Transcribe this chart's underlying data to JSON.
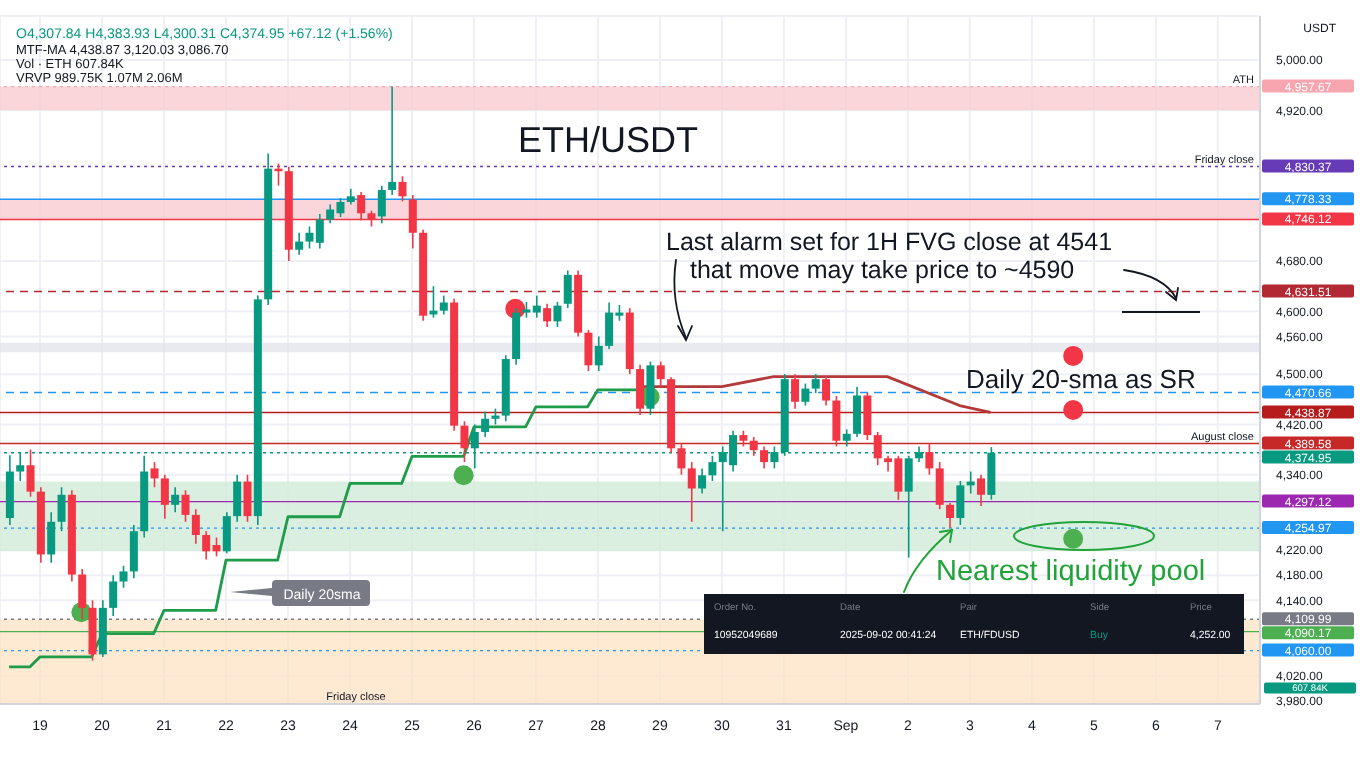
{
  "chart_data": {
    "type": "candlestick",
    "title": "ETH/USDT",
    "ylabel": "USDT",
    "x": [
      "2025-08-18T12:00",
      "2025-08-18T16:00",
      "2025-08-18T20:00",
      "2025-08-19T00:00",
      "2025-08-19T04:00",
      "2025-08-19T08:00",
      "2025-08-19T12:00",
      "2025-08-19T16:00",
      "2025-08-19T20:00",
      "2025-08-20T00:00",
      "2025-08-20T04:00",
      "2025-08-20T08:00",
      "2025-08-20T12:00",
      "2025-08-20T16:00",
      "2025-08-20T20:00",
      "2025-08-21T00:00",
      "2025-08-21T04:00",
      "2025-08-21T08:00",
      "2025-08-21T12:00",
      "2025-08-21T16:00",
      "2025-08-21T20:00",
      "2025-08-22T00:00",
      "2025-08-22T04:00",
      "2025-08-22T08:00",
      "2025-08-22T12:00",
      "2025-08-22T16:00",
      "2025-08-22T20:00",
      "2025-08-23T00:00",
      "2025-08-23T04:00",
      "2025-08-23T08:00",
      "2025-08-23T12:00",
      "2025-08-23T16:00",
      "2025-08-23T20:00",
      "2025-08-24T00:00",
      "2025-08-24T04:00",
      "2025-08-24T08:00",
      "2025-08-24T12:00",
      "2025-08-24T16:00",
      "2025-08-24T20:00",
      "2025-08-25T00:00",
      "2025-08-25T04:00",
      "2025-08-25T08:00",
      "2025-08-25T12:00",
      "2025-08-25T16:00",
      "2025-08-25T20:00",
      "2025-08-26T00:00",
      "2025-08-26T04:00",
      "2025-08-26T08:00",
      "2025-08-26T12:00",
      "2025-08-26T16:00",
      "2025-08-26T20:00",
      "2025-08-27T00:00",
      "2025-08-27T04:00",
      "2025-08-27T08:00",
      "2025-08-27T12:00",
      "2025-08-27T16:00",
      "2025-08-27T20:00",
      "2025-08-28T00:00",
      "2025-08-28T04:00",
      "2025-08-28T08:00",
      "2025-08-28T12:00",
      "2025-08-28T16:00",
      "2025-08-28T20:00",
      "2025-08-29T00:00",
      "2025-08-29T04:00",
      "2025-08-29T08:00",
      "2025-08-29T12:00",
      "2025-08-29T16:00",
      "2025-08-29T20:00",
      "2025-08-30T00:00",
      "2025-08-30T04:00",
      "2025-08-30T08:00",
      "2025-08-30T12:00",
      "2025-08-30T16:00",
      "2025-08-30T20:00",
      "2025-08-31T00:00",
      "2025-08-31T04:00",
      "2025-08-31T08:00",
      "2025-08-31T12:00",
      "2025-08-31T16:00",
      "2025-08-31T20:00",
      "2025-09-01T00:00",
      "2025-09-01T04:00",
      "2025-09-01T08:00",
      "2025-09-01T12:00",
      "2025-09-01T16:00",
      "2025-09-01T20:00",
      "2025-09-02T00:00",
      "2025-09-02T04:00",
      "2025-09-02T08:00",
      "2025-09-02T12:00",
      "2025-09-02T16:00",
      "2025-09-02T20:00",
      "2025-09-03T00:00",
      "2025-09-03T04:00",
      "2025-09-03T08:00"
    ],
    "ohlc": [
      [
        4271,
        4371,
        4260,
        4345
      ],
      [
        4345,
        4375,
        4330,
        4355
      ],
      [
        4355,
        4380,
        4305,
        4313
      ],
      [
        4313,
        4320,
        4200,
        4213
      ],
      [
        4213,
        4280,
        4200,
        4265
      ],
      [
        4265,
        4320,
        4250,
        4308
      ],
      [
        4308,
        4315,
        4170,
        4181
      ],
      [
        4181,
        4190,
        4110,
        4128
      ],
      [
        4128,
        4140,
        4044,
        4054
      ],
      [
        4054,
        4140,
        4050,
        4128
      ],
      [
        4128,
        4180,
        4115,
        4170
      ],
      [
        4170,
        4195,
        4160,
        4186
      ],
      [
        4186,
        4260,
        4175,
        4250
      ],
      [
        4250,
        4370,
        4240,
        4345
      ],
      [
        4350,
        4360,
        4320,
        4334
      ],
      [
        4334,
        4340,
        4270,
        4292
      ],
      [
        4292,
        4320,
        4280,
        4308
      ],
      [
        4308,
        4315,
        4265,
        4276
      ],
      [
        4276,
        4285,
        4230,
        4244
      ],
      [
        4244,
        4250,
        4205,
        4218
      ],
      [
        4228,
        4240,
        4210,
        4218
      ],
      [
        4218,
        4280,
        4215,
        4274
      ],
      [
        4274,
        4340,
        4265,
        4329
      ],
      [
        4329,
        4340,
        4265,
        4274
      ],
      [
        4274,
        4625,
        4260,
        4619
      ],
      [
        4619,
        4851,
        4610,
        4827
      ],
      [
        4827,
        4835,
        4800,
        4823
      ],
      [
        4823,
        4830,
        4680,
        4698
      ],
      [
        4698,
        4725,
        4690,
        4711
      ],
      [
        4711,
        4735,
        4700,
        4725
      ],
      [
        4709,
        4755,
        4700,
        4746
      ],
      [
        4746,
        4770,
        4740,
        4762
      ],
      [
        4756,
        4780,
        4750,
        4774
      ],
      [
        4774,
        4795,
        4770,
        4783
      ],
      [
        4785,
        4790,
        4745,
        4756
      ],
      [
        4756,
        4760,
        4735,
        4746
      ],
      [
        4751,
        4800,
        4740,
        4793
      ],
      [
        4793,
        4957.67,
        4785,
        4806
      ],
      [
        4806,
        4815,
        4775,
        4783
      ],
      [
        4778,
        4785,
        4700,
        4725
      ],
      [
        4725,
        4730,
        4585,
        4593
      ],
      [
        4595,
        4640,
        4590,
        4601
      ],
      [
        4601,
        4625,
        4595,
        4614
      ],
      [
        4614,
        4620,
        4410,
        4418
      ],
      [
        4418,
        4425,
        4360,
        4382
      ],
      [
        4382,
        4420,
        4350,
        4408
      ],
      [
        4408,
        4440,
        4400,
        4429
      ],
      [
        4429,
        4445,
        4420,
        4434
      ],
      [
        4434,
        4530,
        4425,
        4524
      ],
      [
        4524,
        4605,
        4515,
        4598
      ],
      [
        4598,
        4615,
        4590,
        4603
      ],
      [
        4598,
        4625,
        4590,
        4609
      ],
      [
        4605,
        4612,
        4575,
        4584
      ],
      [
        4584,
        4615,
        4575,
        4609
      ],
      [
        4612,
        4665,
        4605,
        4658
      ],
      [
        4658,
        4665,
        4560,
        4566
      ],
      [
        4566,
        4570,
        4505,
        4514
      ],
      [
        4514,
        4560,
        4505,
        4545
      ],
      [
        4545,
        4614,
        4540,
        4598
      ],
      [
        4593,
        4610,
        4585,
        4598
      ],
      [
        4598,
        4605,
        4500,
        4508
      ],
      [
        4508,
        4515,
        4435,
        4445
      ],
      [
        4445,
        4520,
        4435,
        4514
      ],
      [
        4514,
        4520,
        4480,
        4492
      ],
      [
        4492,
        4495,
        4375,
        4382
      ],
      [
        4382,
        4390,
        4340,
        4350
      ],
      [
        4350,
        4360,
        4265,
        4318
      ],
      [
        4318,
        4350,
        4310,
        4339
      ],
      [
        4339,
        4370,
        4330,
        4360
      ],
      [
        4360,
        4385,
        4250,
        4376
      ],
      [
        4355,
        4410,
        4345,
        4403
      ],
      [
        4403,
        4410,
        4385,
        4394
      ],
      [
        4394,
        4400,
        4370,
        4379
      ],
      [
        4379,
        4385,
        4350,
        4360
      ],
      [
        4360,
        4385,
        4350,
        4376
      ],
      [
        4376,
        4500,
        4370,
        4492
      ],
      [
        4492,
        4500,
        4445,
        4456
      ],
      [
        4456,
        4485,
        4450,
        4477
      ],
      [
        4477,
        4500,
        4470,
        4492
      ],
      [
        4492,
        4498,
        4450,
        4458
      ],
      [
        4458,
        4465,
        4385,
        4394
      ],
      [
        4394,
        4412,
        4385,
        4405
      ],
      [
        4405,
        4480,
        4400,
        4466
      ],
      [
        4466,
        4470,
        4395,
        4403
      ],
      [
        4403,
        4408,
        4355,
        4366
      ],
      [
        4366,
        4370,
        4345,
        4360
      ],
      [
        4366,
        4370,
        4300,
        4313
      ],
      [
        4313,
        4370,
        4208,
        4366
      ],
      [
        4366,
        4385,
        4360,
        4376
      ],
      [
        4376,
        4390,
        4340,
        4350
      ],
      [
        4350,
        4360,
        4285,
        4292
      ],
      [
        4292,
        4295,
        4255,
        4271
      ],
      [
        4271,
        4330,
        4260,
        4323
      ],
      [
        4323,
        4345,
        4310,
        4329
      ],
      [
        4334,
        4340,
        4290,
        4308
      ],
      [
        4307.84,
        4383.93,
        4300.31,
        4374.95
      ]
    ],
    "colors": [
      "#089981",
      "#089981",
      "#f23645",
      "#f23645",
      "#089981",
      "#089981",
      "#f23645",
      "#f23645",
      "#f23645",
      "#089981",
      "#089981",
      "#089981",
      "#089981",
      "#089981",
      "#f23645",
      "#f23645",
      "#089981",
      "#f23645",
      "#f23645",
      "#f23645",
      "#f23645",
      "#089981",
      "#089981",
      "#f23645",
      "#089981",
      "#089981",
      "#f23645",
      "#f23645",
      "#089981",
      "#089981",
      "#089981",
      "#089981",
      "#089981",
      "#089981",
      "#f23645",
      "#f23645",
      "#089981",
      "#089981",
      "#f23645",
      "#f23645",
      "#f23645",
      "#089981",
      "#089981",
      "#f23645",
      "#f23645",
      "#089981",
      "#089981",
      "#089981",
      "#089981",
      "#089981",
      "#089981",
      "#089981",
      "#f23645",
      "#089981",
      "#089981",
      "#f23645",
      "#f23645",
      "#089981",
      "#089981",
      "#089981",
      "#f23645",
      "#f23645",
      "#089981",
      "#f23645",
      "#f23645",
      "#f23645",
      "#f23645",
      "#089981",
      "#089981",
      "#089981",
      "#089981",
      "#f23645",
      "#f23645",
      "#f23645",
      "#089981",
      "#089981",
      "#f23645",
      "#089981",
      "#089981",
      "#f23645",
      "#f23645",
      "#089981",
      "#089981",
      "#f23645",
      "#f23645",
      "#f23645",
      "#f23645",
      "#089981",
      "#089981",
      "#f23645",
      "#f23645",
      "#f23645",
      "#089981",
      "#089981",
      "#f23645",
      "#089981"
    ],
    "series": [
      {
        "type": "line",
        "color": "#1e9c4a",
        "x": [
          "2025-08-18T12:00",
          "2025-08-18T20:00",
          "2025-08-19T00:00",
          "2025-08-19T20:00",
          "2025-08-20T00:00",
          "2025-08-20T20:00",
          "2025-08-21T00:00",
          "2025-08-21T20:00",
          "2025-08-22T00:00",
          "2025-08-22T20:00",
          "2025-08-23T00:00",
          "2025-08-23T20:00",
          "2025-08-24T00:00",
          "2025-08-24T20:00",
          "2025-08-25T00:00",
          "2025-08-25T20:00",
          "2025-08-26T00:00",
          "2025-08-26T20:00",
          "2025-08-27T00:00",
          "2025-08-27T20:00",
          "2025-08-28T00:00",
          "2025-08-28T20:00"
        ],
        "values": [
          4034,
          4034,
          4050,
          4050,
          4087,
          4087,
          4124,
          4124,
          4204,
          4204,
          4273,
          4273,
          4326,
          4326,
          4369,
          4369,
          4416,
          4416,
          4448,
          4448,
          4475,
          4475
        ]
      },
      {
        "type": "line",
        "color": "#b23a3a",
        "x": [
          "2025-08-28T16:00",
          "2025-08-30T00:00",
          "2025-08-30T20:00",
          "2025-09-01T16:00",
          "2025-09-02T20:00",
          "2025-09-03T08:00"
        ],
        "values": [
          4480,
          4480,
          4496,
          4496,
          4450,
          4439
        ]
      },
      {
        "type": "scatter",
        "color": "#f23645",
        "x": [
          "2025-08-26T16:00",
          "2025-09-04T16:00",
          "2025-09-04T16:00"
        ],
        "values": [
          4604,
          4529,
          4443
        ]
      },
      {
        "type": "scatter",
        "color": "#4caf50",
        "x": [
          "2025-08-19T16:00",
          "2025-08-25T20:00",
          "2025-08-28T20:00",
          "2025-09-04T16:00"
        ],
        "values": [
          4121,
          4339,
          4464,
          4238
        ]
      }
    ],
    "xlim": [
      "2025-08-18T08:30",
      "2025-09-07T16:20"
    ],
    "xticks": [
      {
        "value": "2025-08-19",
        "label": "19"
      },
      {
        "value": "2025-08-20",
        "label": "20"
      },
      {
        "value": "2025-08-21",
        "label": "21"
      },
      {
        "value": "2025-08-22",
        "label": "22"
      },
      {
        "value": "2025-08-23",
        "label": "23"
      },
      {
        "value": "2025-08-24",
        "label": "24"
      },
      {
        "value": "2025-08-25",
        "label": "25"
      },
      {
        "value": "2025-08-26",
        "label": "26"
      },
      {
        "value": "2025-08-27",
        "label": "27"
      },
      {
        "value": "2025-08-28",
        "label": "28"
      },
      {
        "value": "2025-08-29",
        "label": "29"
      },
      {
        "value": "2025-08-30",
        "label": "30"
      },
      {
        "value": "2025-08-31",
        "label": "31"
      },
      {
        "value": "2025-09-01",
        "label": "Sep"
      },
      {
        "value": "2025-09-02",
        "label": "2"
      },
      {
        "value": "2025-09-03",
        "label": "3"
      },
      {
        "value": "2025-09-04",
        "label": "4"
      },
      {
        "value": "2025-09-05",
        "label": "5"
      },
      {
        "value": "2025-09-06",
        "label": "6"
      },
      {
        "value": "2025-09-07",
        "label": "7"
      }
    ],
    "ylim": [
      3975,
      5070
    ],
    "yticks": [
      {
        "value": 5000,
        "label": "5,000.00"
      },
      {
        "value": 4920,
        "label": "4,920.00"
      },
      {
        "value": 4680,
        "label": "4,680.00"
      },
      {
        "value": 4600,
        "label": "4,600.00"
      },
      {
        "value": 4560,
        "label": "4,560.00"
      },
      {
        "value": 4500,
        "label": "4,500.00"
      },
      {
        "value": 4420,
        "label": "4,420.00"
      },
      {
        "value": 4340,
        "label": "4,340.00"
      },
      {
        "value": 4220,
        "label": "4,220.00"
      },
      {
        "value": 4180,
        "label": "4,180.00"
      },
      {
        "value": 4140,
        "label": "4,140.00"
      },
      {
        "value": 4020,
        "label": "4,020.00"
      },
      {
        "value": 3980,
        "label": "3,980.00"
      }
    ],
    "grid": true,
    "ref_lines": [
      {
        "axis": "y",
        "value": 4957.67,
        "label": "4,957.67",
        "color": "#f7a6b0",
        "line_style": "dotted"
      },
      {
        "axis": "y",
        "value": 4830.37,
        "label": "4,830.37",
        "color": "#673ab7",
        "line_style": "dotted"
      },
      {
        "axis": "y",
        "value": 4778.33,
        "label": "4,778.33",
        "color": "#2196f3"
      },
      {
        "axis": "y",
        "value": 4746.12,
        "label": "4,746.12",
        "color": "#f23645"
      },
      {
        "axis": "y",
        "value": 4631.51,
        "label": "4,631.51",
        "color": "#b22833",
        "line_style": "dashed"
      },
      {
        "axis": "y",
        "value": 4470.66,
        "label": "4,470.66",
        "color": "#2196f3",
        "line_style": "dashed"
      },
      {
        "axis": "y",
        "value": 4438.87,
        "label": "4,438.87",
        "color": "#b71c1c"
      },
      {
        "axis": "y",
        "value": 4389.58,
        "label": "4,389.58",
        "color": "#c62828"
      },
      {
        "axis": "y",
        "value": 4374.95,
        "label": "4,374.95",
        "color": "#089981",
        "line_style": "dotted"
      },
      {
        "axis": "y",
        "value": 4297.12,
        "label": "4,297.12",
        "color": "#9c27b0"
      },
      {
        "axis": "y",
        "value": 4254.97,
        "label": "4,254.97",
        "color": "#2196f3",
        "line_style": "dotted"
      },
      {
        "axis": "y",
        "value": 4109.99,
        "label": "4,109.99",
        "color": "#787b86",
        "line_style": "dotted"
      },
      {
        "axis": "y",
        "value": 4090.17,
        "label": "4,090.17",
        "color": "#4caf50"
      },
      {
        "axis": "y",
        "value": 4060,
        "label": "4,060.00",
        "color": "#2196f3",
        "line_style": "dotted"
      }
    ],
    "bands": [
      {
        "axis": "y",
        "from": 4920,
        "to": 4957.67,
        "color": "#f8c8cf"
      },
      {
        "axis": "y",
        "from": 4746.12,
        "to": 4778.33,
        "color": "#f8c8cf"
      },
      {
        "axis": "y",
        "from": 4535,
        "to": 4550,
        "color": "#e0e3eb"
      },
      {
        "axis": "y",
        "from": 4218,
        "to": 4329,
        "color": "#cfe9d5"
      },
      {
        "axis": "y",
        "from": 3975,
        "to": 4109.99,
        "color": "#fde2c4"
      }
    ],
    "annotations": [
      "O4,307.84 H4,383.93 L4,300.31 C4,374.95 +67.12 (+1.56%)",
      "MTF-MA 4,438.87 3,120.03 3,086.70",
      "Vol · ETH 607.84K",
      "VRVP 989.75K 1.07M 2.06M",
      "Last alarm set for 1H FVG close at 4541",
      "that move may take price to ~4590",
      "Daily 20-sma as SR",
      "Nearest liquidity pool",
      "Daily 20sma",
      "Friday close",
      "607.84K",
      "Order No.",
      "Date",
      "Pair",
      "Side",
      "Price",
      "10952049689",
      "2025-09-02 00:41:24",
      "ETH/FDUSD",
      "Buy",
      "4,252.00",
      {
        "text": "ATH",
        "y": 4957.67
      },
      {
        "text": "Friday close",
        "y": 4830.37
      },
      {
        "text": "August close",
        "y": 4389.58
      }
    ]
  }
}
